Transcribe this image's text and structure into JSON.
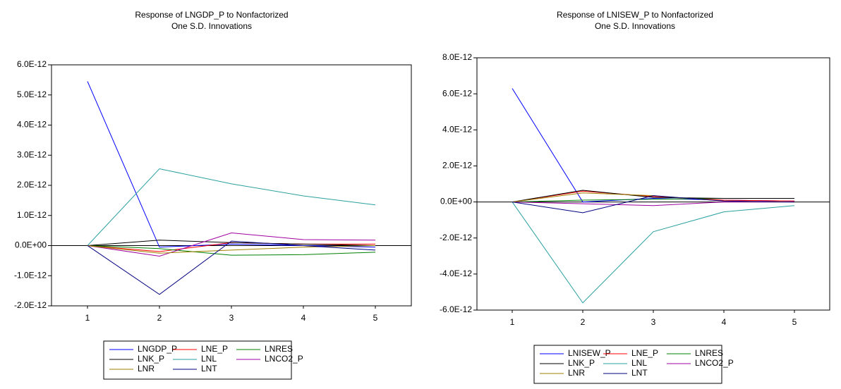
{
  "chart_data": [
    {
      "type": "line",
      "title": [
        "Response of LNGDP_P to Nonfactorized",
        "One S.D. Innovations"
      ],
      "x": [
        1,
        2,
        3,
        4,
        5
      ],
      "xlim": [
        0.5,
        5.5
      ],
      "xticks": [
        1,
        2,
        3,
        4,
        5
      ],
      "ylim": [
        -2e-12,
        6e-12
      ],
      "yticks": [
        {
          "value": -2e-12,
          "label": "-2.0E-12"
        },
        {
          "value": -1e-12,
          "label": "-1.0E-12"
        },
        {
          "value": 0,
          "label": "0.0E+00"
        },
        {
          "value": 1e-12,
          "label": "1.0E-12"
        },
        {
          "value": 2e-12,
          "label": "2.0E-12"
        },
        {
          "value": 3e-12,
          "label": "3.0E-12"
        },
        {
          "value": 4e-12,
          "label": "4.0E-12"
        },
        {
          "value": 5e-12,
          "label": "5.0E-12"
        },
        {
          "value": 6e-12,
          "label": "6.0E-12"
        }
      ],
      "legend": "bottom",
      "series": [
        {
          "name": "LNGDP_P",
          "color": "#0000ff",
          "values": [
            5.45e-12,
            -5e-14,
            5e-14,
            0,
            -5e-14
          ]
        },
        {
          "name": "LNE_P",
          "color": "#ff0000",
          "values": [
            0,
            -2e-13,
            1e-13,
            5e-14,
            5e-14
          ]
        },
        {
          "name": "LNRES",
          "color": "#008000",
          "values": [
            0,
            -1e-13,
            -3.2e-13,
            -3e-13,
            -2.2e-13
          ]
        },
        {
          "name": "LNK_P",
          "color": "#000000",
          "values": [
            0,
            1.8e-13,
            1e-13,
            5e-14,
            0
          ]
        },
        {
          "name": "LNL",
          "color": "#2aa0a0",
          "values": [
            0,
            2.55e-12,
            2.05e-12,
            1.65e-12,
            1.35e-12
          ]
        },
        {
          "name": "LNCO2_P",
          "color": "#a000a0",
          "values": [
            0,
            -3.5e-13,
            4.2e-13,
            2e-13,
            1.8e-13
          ]
        },
        {
          "name": "LNR",
          "color": "#a08000",
          "values": [
            0,
            -2.5e-13,
            -1.5e-13,
            -5e-14,
            0
          ]
        },
        {
          "name": "LNT",
          "color": "#000080",
          "values": [
            0,
            -1.62e-12,
            1.5e-13,
            0,
            -1.5e-13
          ]
        }
      ]
    },
    {
      "type": "line",
      "title": [
        "Response of LNISEW_P to Nonfactorized",
        "One S.D. Innovations"
      ],
      "x": [
        1,
        2,
        3,
        4,
        5
      ],
      "xlim": [
        0.5,
        5.5
      ],
      "xticks": [
        1,
        2,
        3,
        4,
        5
      ],
      "ylim": [
        -6e-12,
        8e-12
      ],
      "yticks": [
        {
          "value": -6e-12,
          "label": "-6.0E-12"
        },
        {
          "value": -4e-12,
          "label": "-4.0E-12"
        },
        {
          "value": -2e-12,
          "label": "-2.0E-12"
        },
        {
          "value": 0,
          "label": "0.0E+00"
        },
        {
          "value": 2e-12,
          "label": "2.0E-12"
        },
        {
          "value": 4e-12,
          "label": "4.0E-12"
        },
        {
          "value": 6e-12,
          "label": "6.0E-12"
        },
        {
          "value": 8e-12,
          "label": "8.0E-12"
        }
      ],
      "legend": "bottom",
      "series": [
        {
          "name": "LNISEW_P",
          "color": "#0000ff",
          "values": [
            6.3e-12,
            0,
            2e-13,
            1e-13,
            5e-14
          ]
        },
        {
          "name": "LNE_P",
          "color": "#ff0000",
          "values": [
            0,
            6e-13,
            3e-13,
            1e-13,
            5e-14
          ]
        },
        {
          "name": "LNRES",
          "color": "#008000",
          "values": [
            0,
            1e-13,
            1.5e-13,
            2e-13,
            2e-13
          ]
        },
        {
          "name": "LNK_P",
          "color": "#000000",
          "values": [
            0,
            6.5e-13,
            2.5e-13,
            2e-13,
            2e-13
          ]
        },
        {
          "name": "LNL",
          "color": "#2aa0a0",
          "values": [
            0,
            -5.6e-12,
            -1.65e-12,
            -5.5e-13,
            -2e-13
          ]
        },
        {
          "name": "LNCO2_P",
          "color": "#a000a0",
          "values": [
            0,
            -1e-13,
            -2e-13,
            0,
            0
          ]
        },
        {
          "name": "LNR",
          "color": "#a08000",
          "values": [
            0,
            5e-13,
            3.5e-13,
            5e-14,
            0
          ]
        },
        {
          "name": "LNT",
          "color": "#000080",
          "values": [
            0,
            -6e-13,
            3.5e-13,
            5e-14,
            0
          ]
        }
      ]
    }
  ]
}
